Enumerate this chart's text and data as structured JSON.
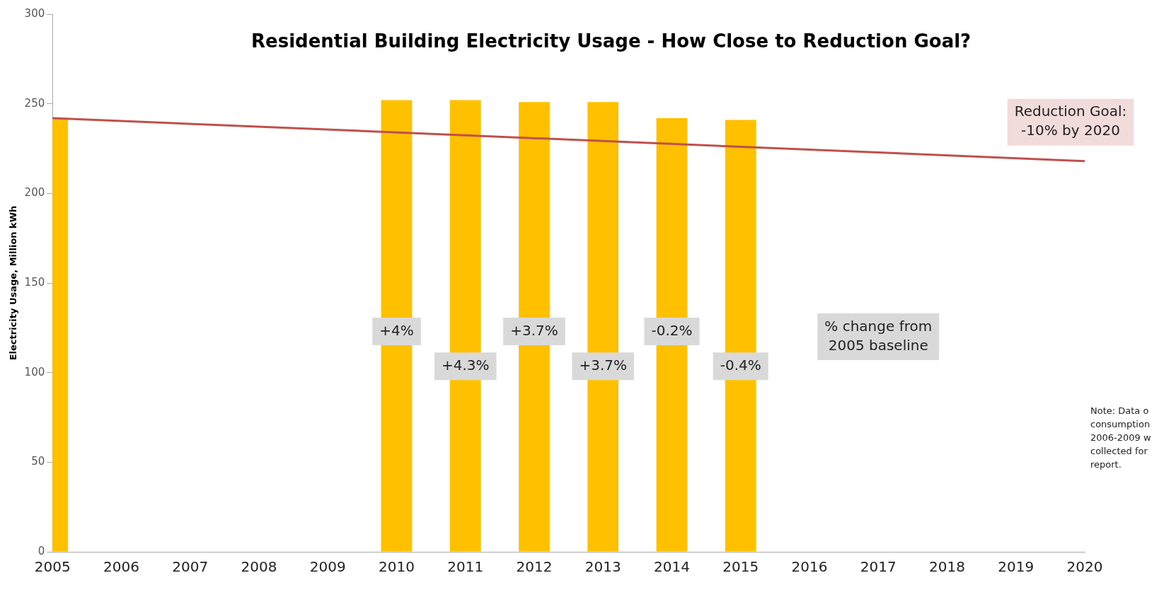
{
  "chart_data": {
    "type": "bar",
    "title": "Residential Building Electricity Usage - How Close to Reduction Goal?",
    "ylabel": "Electricity Usage, Million kWh",
    "categories": [
      "2005",
      "2006",
      "2007",
      "2008",
      "2009",
      "2010",
      "2011",
      "2012",
      "2013",
      "2014",
      "2015",
      "2016",
      "2017",
      "2018",
      "2019",
      "2020"
    ],
    "series": [
      {
        "color": "#ffc000",
        "values": [
          242,
          null,
          null,
          null,
          null,
          252,
          252,
          251,
          251,
          242,
          241,
          null,
          null,
          null,
          null,
          null
        ]
      },
      {
        "type": "line",
        "name": "Reduction Goal:\n-10% by 2020",
        "color": "#c0504d",
        "values": [
          242,
          null,
          null,
          null,
          null,
          null,
          null,
          null,
          null,
          null,
          null,
          null,
          null,
          null,
          null,
          218
        ]
      }
    ],
    "ylim": [
      0,
      300
    ],
    "yticks": [
      0,
      50,
      100,
      150,
      200,
      250,
      300
    ],
    "grid": false,
    "legend": false,
    "annotations": [
      "+4%",
      "+4.3%",
      "+3.7%",
      "+3.7%",
      "-0.2%",
      "-0.4%",
      "% change from\n2005 baseline",
      "Note: Data o\nconsumption\n2006-2009 w\ncollected for\nreport."
    ]
  }
}
